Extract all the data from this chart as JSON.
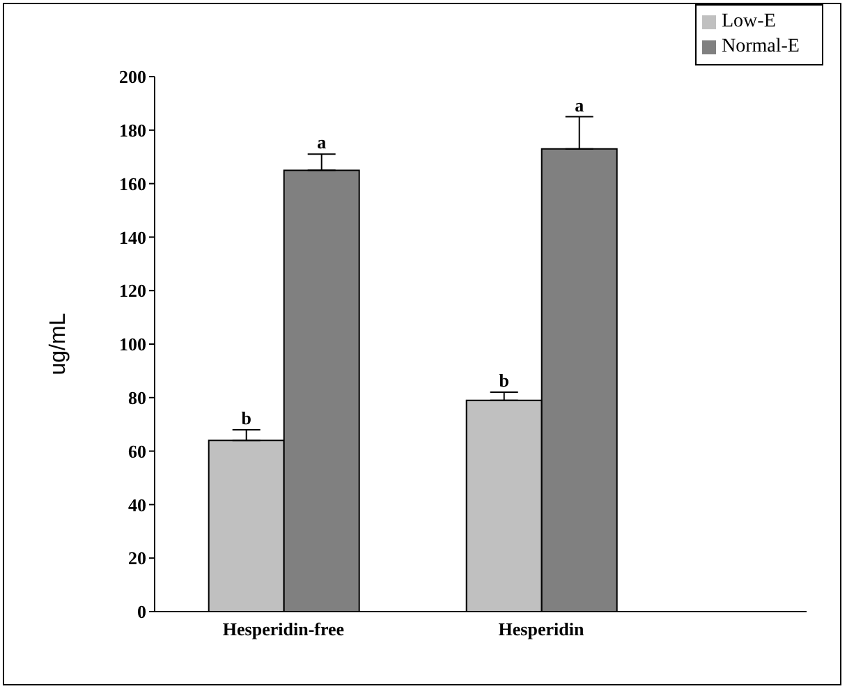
{
  "chart_data": {
    "type": "bar",
    "categories": [
      "Hesperidin-free",
      "Hesperidin"
    ],
    "series": [
      {
        "name": "Low-E",
        "color": "#c0c0c0",
        "values": [
          64,
          79
        ],
        "errors": [
          4,
          3
        ],
        "value_labels": [
          "b",
          "b"
        ]
      },
      {
        "name": "Normal-E",
        "color": "#808080",
        "values": [
          165,
          173
        ],
        "errors": [
          6,
          12
        ],
        "value_labels": [
          "a",
          "a"
        ]
      }
    ],
    "ylabel": "ug/mL",
    "ylim": [
      0,
      200
    ],
    "yticks": [
      0,
      20,
      40,
      60,
      80,
      100,
      120,
      140,
      160,
      180,
      200
    ],
    "legend": "top right",
    "grid": false
  }
}
